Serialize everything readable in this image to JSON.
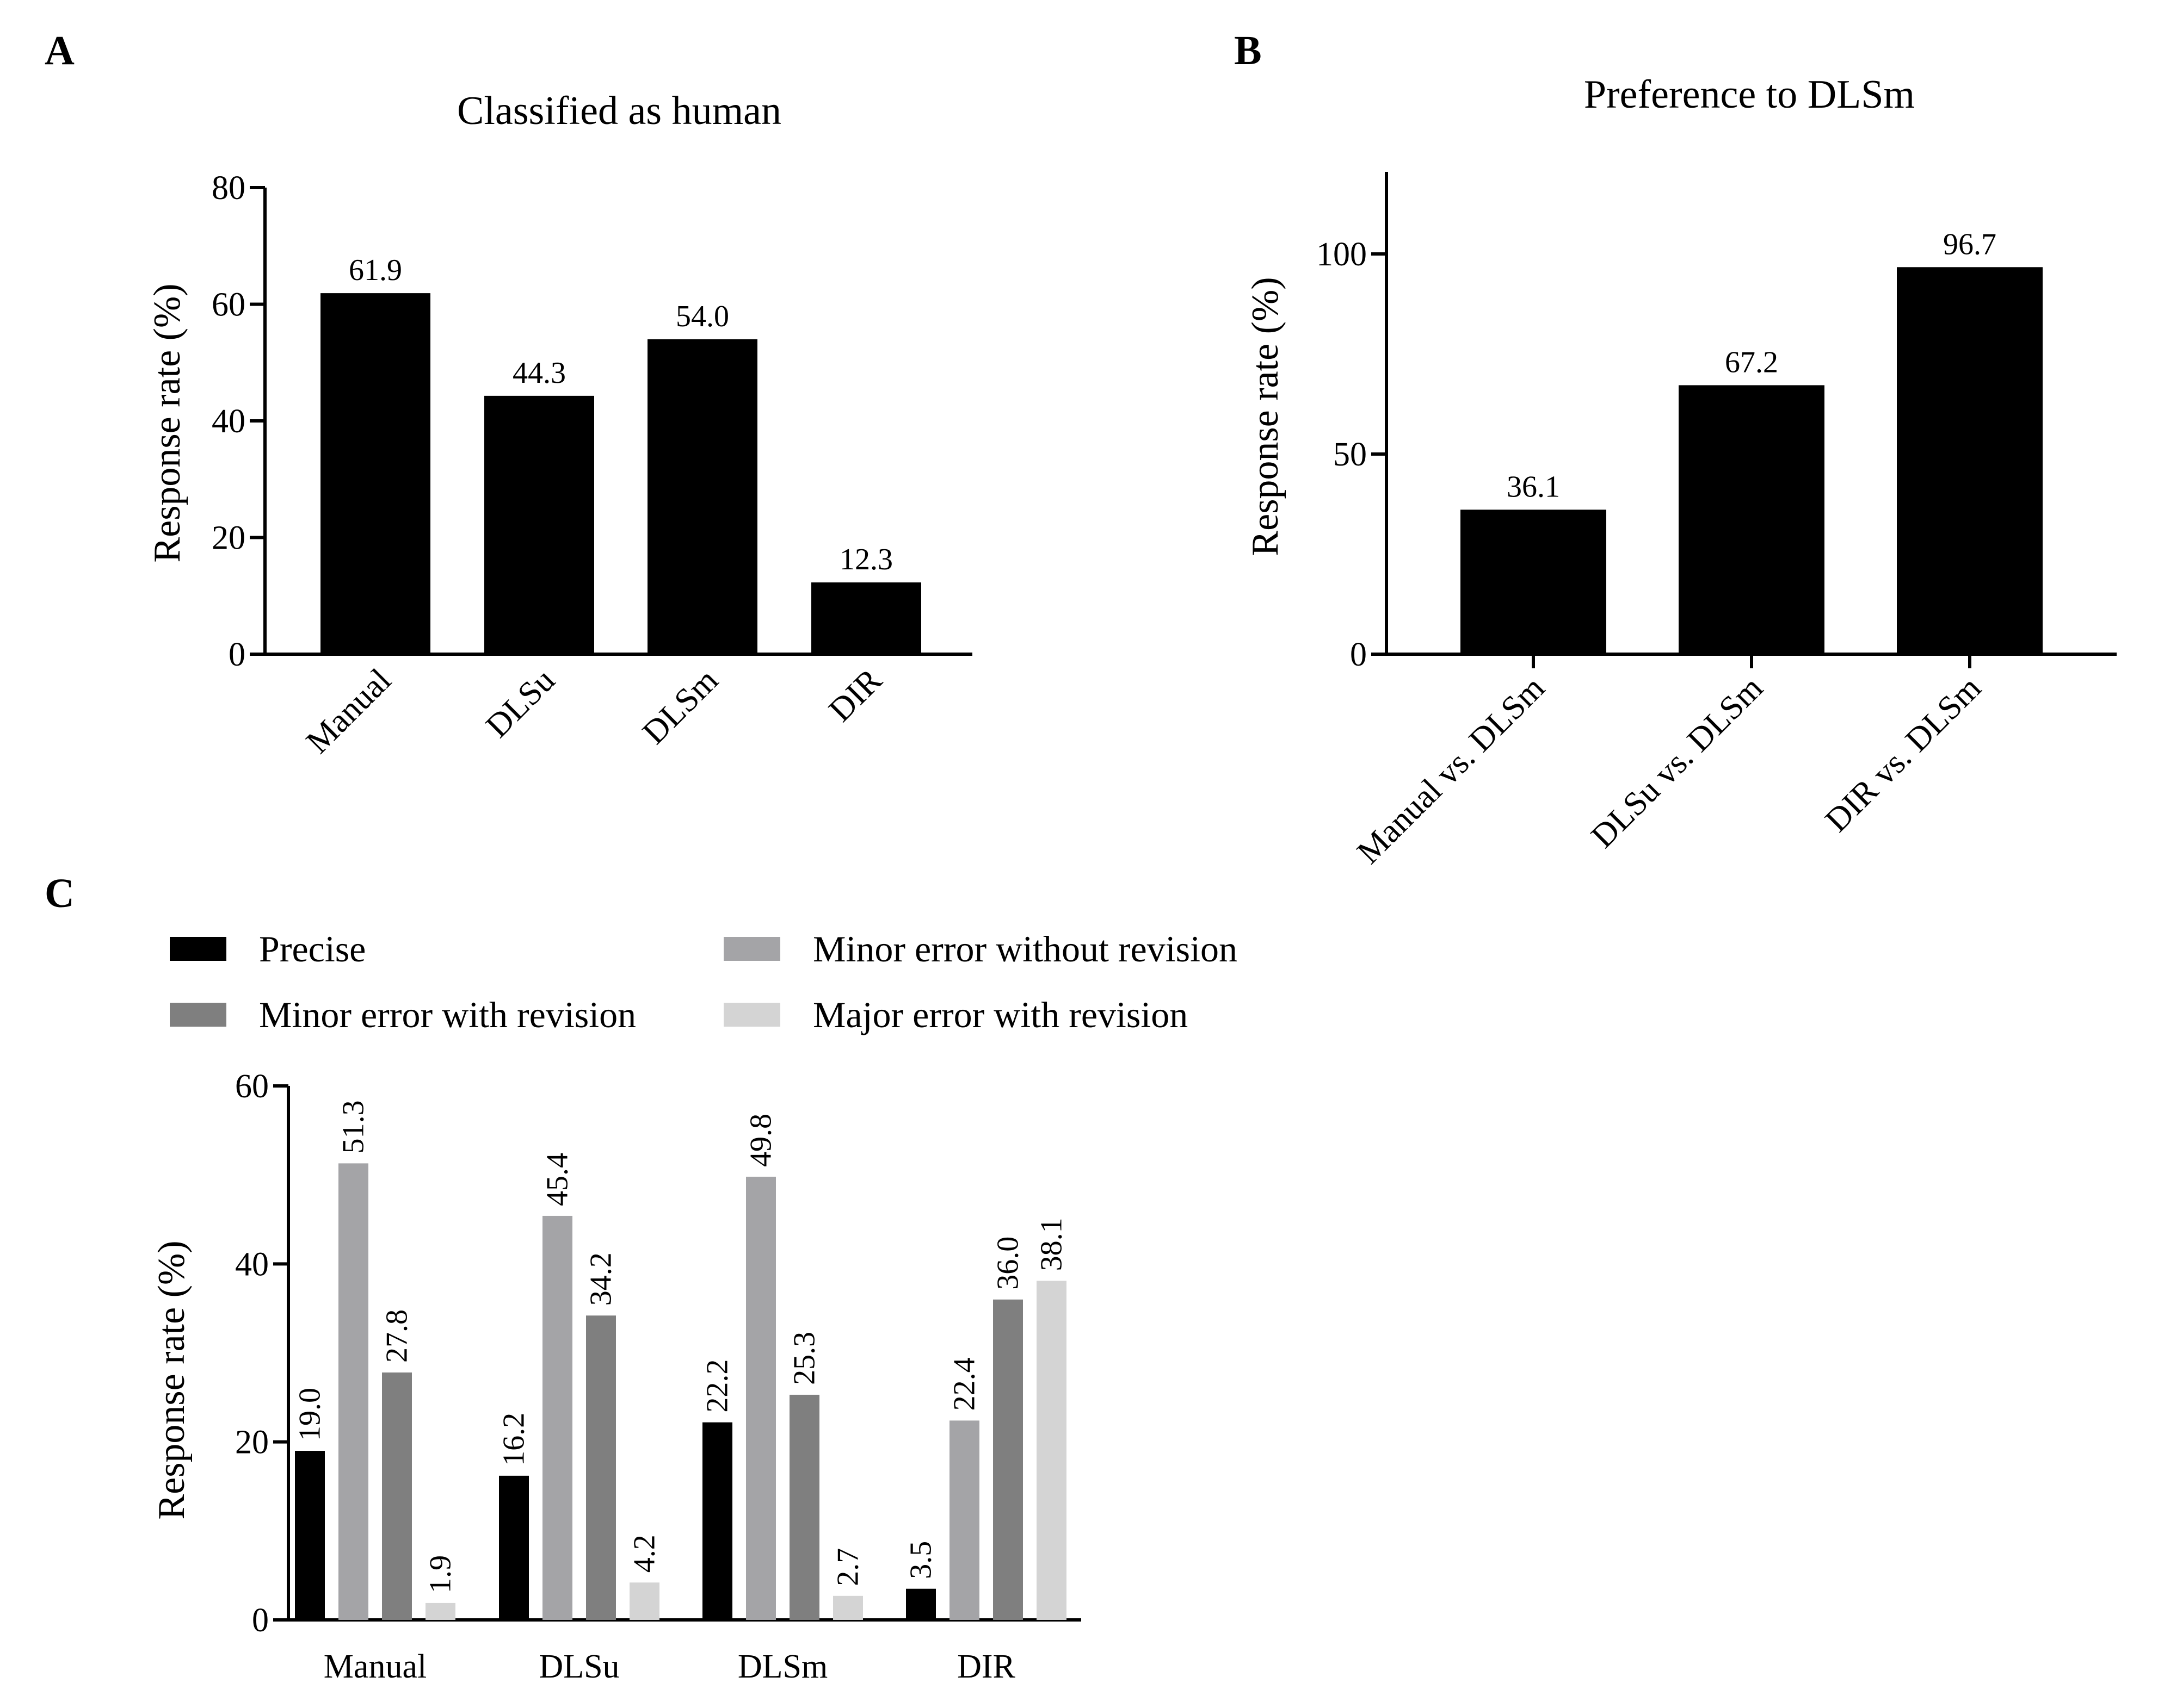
{
  "colors": {
    "precise": "#000000",
    "minor_without": "#a4a4a7",
    "minor_with": "#7f7f7f",
    "major_with": "#d4d4d4",
    "axis": "#000000"
  },
  "chart_data": [
    {
      "panel": "A",
      "type": "bar",
      "title": "Classified as human",
      "xlabel": "",
      "ylabel": "Response rate (%)",
      "ylim": [
        0,
        80
      ],
      "yticks": [
        0,
        20,
        40,
        60,
        80
      ],
      "categories": [
        "Manual",
        "DLSu",
        "DLSm",
        "DIR"
      ],
      "values": [
        61.9,
        44.3,
        54.0,
        12.3
      ],
      "value_labels": [
        "61.9",
        "44.3",
        "54.0",
        "12.3"
      ],
      "category_label_rotation": "diagonal",
      "grid": false,
      "bar_color": "#000000"
    },
    {
      "panel": "B",
      "type": "bar",
      "title": "Preference to DLSm",
      "xlabel": "",
      "ylabel": "Response rate (%)",
      "ylim": [
        0,
        120
      ],
      "yticks": [
        0,
        50,
        100
      ],
      "categories": [
        "Manual vs. DLSm",
        "DLSu vs. DLSm",
        "DIR vs. DLSm"
      ],
      "values": [
        36.1,
        67.2,
        96.7
      ],
      "value_labels": [
        "36.1",
        "67.2",
        "96.7"
      ],
      "category_label_rotation": "diagonal",
      "grid": false,
      "bar_color": "#000000"
    },
    {
      "panel": "C",
      "type": "bar",
      "title": "",
      "xlabel": "",
      "ylabel": "Response rate (%)",
      "ylim": [
        0,
        60
      ],
      "yticks": [
        0,
        20,
        40,
        60
      ],
      "categories": [
        "Manual",
        "DLSu",
        "DLSm",
        "DIR"
      ],
      "legend_position": "top",
      "grid": false,
      "series": [
        {
          "name": "Precise",
          "color": "#000000",
          "values": [
            19.0,
            16.2,
            22.2,
            3.5
          ],
          "value_labels": [
            "19.0",
            "16.2",
            "22.2",
            "3.5"
          ]
        },
        {
          "name": "Minor error without revision",
          "color": "#a4a4a7",
          "values": [
            51.3,
            45.4,
            49.8,
            22.4
          ],
          "value_labels": [
            "51.3",
            "45.4",
            "49.8",
            "22.4"
          ]
        },
        {
          "name": "Minor error with revision",
          "color": "#7f7f7f",
          "values": [
            27.8,
            34.2,
            25.3,
            36.0
          ],
          "value_labels": [
            "27.8",
            "34.2",
            "25.3",
            "36.0"
          ]
        },
        {
          "name": "Major error with revision",
          "color": "#d4d4d4",
          "values": [
            1.9,
            4.2,
            2.7,
            38.1
          ],
          "value_labels": [
            "1.9",
            "4.2",
            "2.7",
            "38.1"
          ]
        }
      ]
    }
  ]
}
